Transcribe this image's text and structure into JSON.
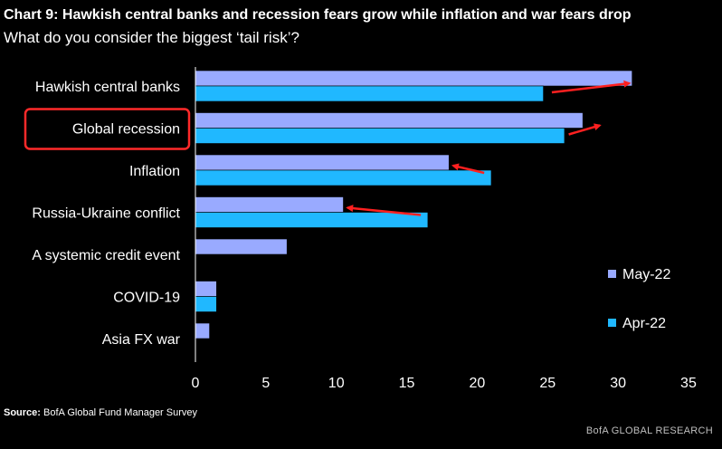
{
  "header": {
    "title": "Chart 9: Hawkish central banks and recession fears grow while inflation and war fears drop",
    "subtitle": "What do you consider the biggest ‘tail risk’?"
  },
  "footer": {
    "source_label": "Source:",
    "source_text": "BofA Global Fund Manager Survey",
    "brand": "BofA GLOBAL RESEARCH"
  },
  "chart_data": {
    "type": "bar",
    "orientation": "horizontal",
    "categories": [
      "Hawkish central banks",
      "Global recession",
      "Inflation",
      "Russia-Ukraine conflict",
      "A systemic credit event",
      "COVID-19",
      "Asia FX war"
    ],
    "series": [
      {
        "name": "May-22",
        "values": [
          31,
          27.5,
          18,
          10.5,
          6.5,
          1.5,
          1
        ],
        "color": "#99aaff"
      },
      {
        "name": "Apr-22",
        "values": [
          24.7,
          26.2,
          21,
          16.5,
          null,
          1.5,
          null
        ],
        "color": "#20b8ff"
      }
    ],
    "xlim": [
      0,
      35
    ],
    "xticks": [
      0,
      5,
      10,
      15,
      20,
      25,
      30,
      35
    ],
    "legend_position": "right",
    "highlighted_category": "Global recession",
    "highlight_color": "#ff2a2a",
    "arrow_color": "#ff2020",
    "annotations": [
      {
        "type": "arrow",
        "category_index": 0,
        "from": 25.3,
        "to": 30.8
      },
      {
        "type": "arrow",
        "category_index": 1,
        "from": 26.5,
        "to": 28.7
      },
      {
        "type": "arrow",
        "category_index": 2,
        "from": 20.5,
        "to": 18.3
      },
      {
        "type": "arrow",
        "category_index": 3,
        "from": 16.0,
        "to": 10.8
      }
    ]
  }
}
